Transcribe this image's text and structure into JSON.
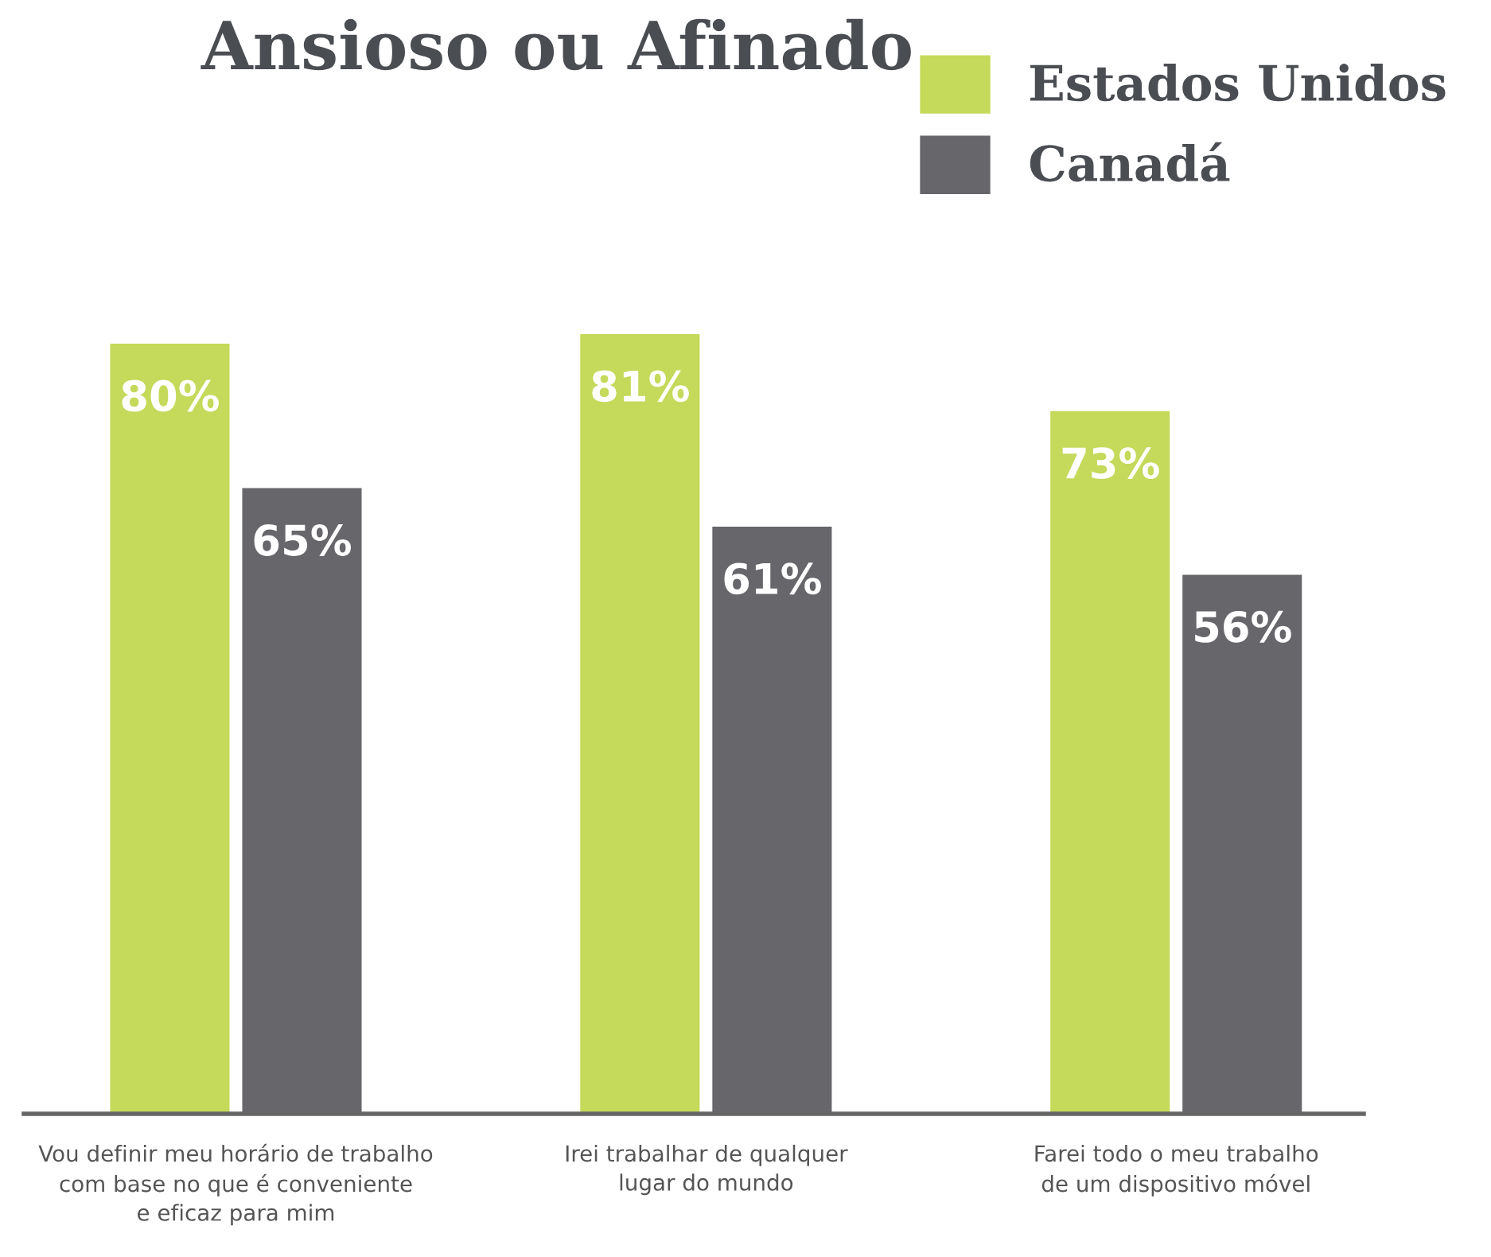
{
  "chart_data": {
    "type": "bar",
    "title": "Ansioso ou Afinado",
    "categories": [
      "Vou definir meu horário de trabalho\ncom base no que é conveniente\ne eficaz para mim",
      "Irei trabalhar de qualquer\nlugar do mundo",
      "Farei todo o meu trabalho\nde um dispositivo móvel"
    ],
    "series": [
      {
        "name": "Estados Unidos",
        "color": "#c5d95a",
        "values": [
          80,
          81,
          73
        ],
        "value_labels": [
          "80%",
          "81%",
          "73%"
        ]
      },
      {
        "name": "Canadá",
        "color": "#67666b",
        "values": [
          65,
          61,
          56
        ],
        "value_labels": [
          "65%",
          "61%",
          "56%"
        ]
      }
    ],
    "legend": "top right",
    "grid": false
  }
}
